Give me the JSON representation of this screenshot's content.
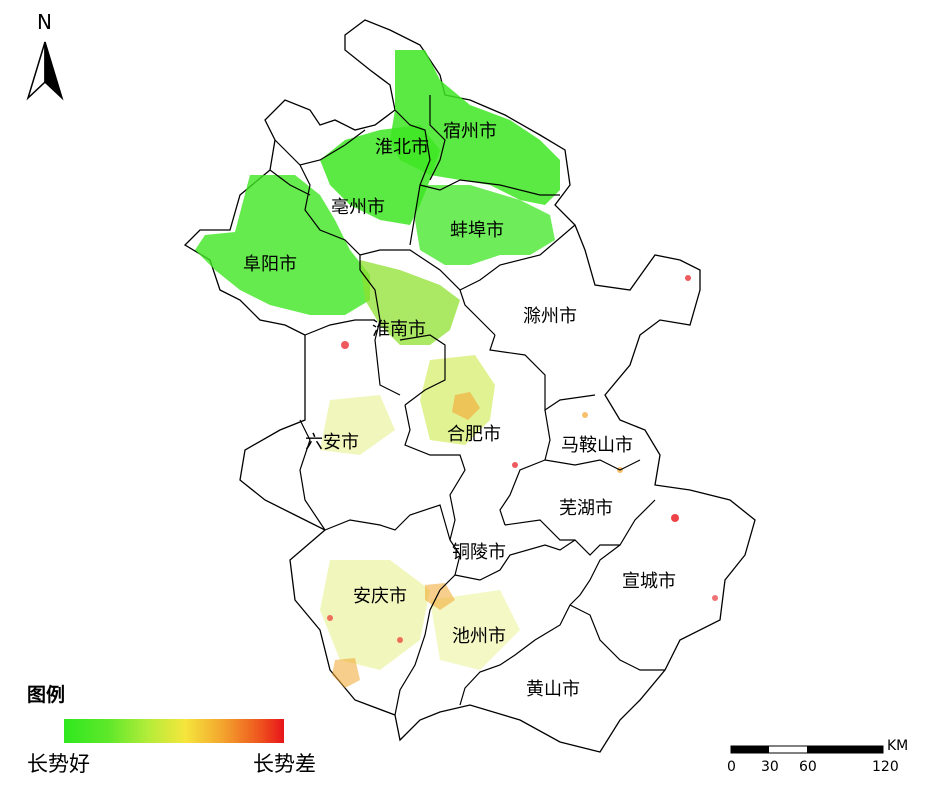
{
  "map": {
    "north_label": "N",
    "cities": [
      {
        "id": "huaibei",
        "name": "淮北市"
      },
      {
        "id": "suzhou",
        "name": "宿州市"
      },
      {
        "id": "bozhou",
        "name": "亳州市"
      },
      {
        "id": "bengbu",
        "name": "蚌埠市"
      },
      {
        "id": "fuyang",
        "name": "阜阳市"
      },
      {
        "id": "huainan",
        "name": "淮南市"
      },
      {
        "id": "chuzhou",
        "name": "滁州市"
      },
      {
        "id": "luan",
        "name": "六安市"
      },
      {
        "id": "hefei",
        "name": "合肥市"
      },
      {
        "id": "maanshan",
        "name": "马鞍山市"
      },
      {
        "id": "wuhu",
        "name": "芜湖市"
      },
      {
        "id": "tongling",
        "name": "铜陵市"
      },
      {
        "id": "anqing",
        "name": "安庆市"
      },
      {
        "id": "xuancheng",
        "name": "宣城市"
      },
      {
        "id": "chizhou",
        "name": "池州市"
      },
      {
        "id": "huangshan",
        "name": "黄山市"
      }
    ]
  },
  "legend": {
    "title": "图例",
    "low_label": "长势好",
    "high_label": "长势差",
    "colors": [
      "#2fe81f",
      "#b3ec3a",
      "#f5e63c",
      "#f3a52e",
      "#e8141a"
    ]
  },
  "scale_bar": {
    "unit": "KM",
    "ticks": [
      "0",
      "30",
      "60",
      "120"
    ]
  }
}
